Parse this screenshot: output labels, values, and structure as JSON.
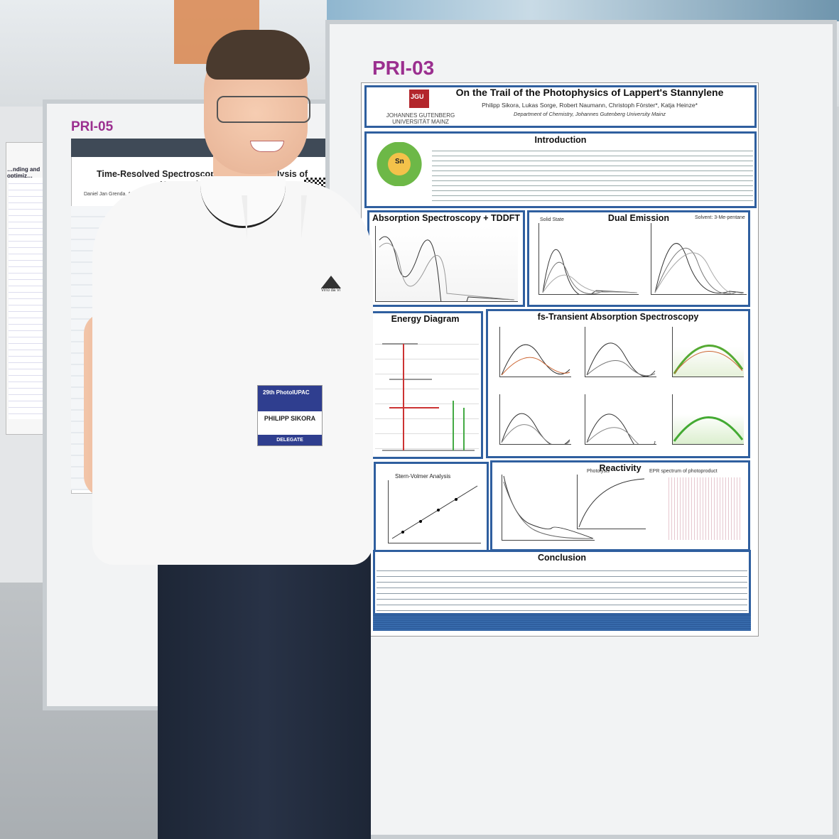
{
  "left_poster": {
    "tag": "PRI-05",
    "title": "Time-Resolved Spectroscopic Studi… …rolysis of Homopolar Seleni…",
    "authors": "Daniel Jan Grenda, Anna … Roger Jan Kutta, …"
  },
  "far_left_poster": {
    "title": "…nding and optimiz…"
  },
  "main_poster": {
    "tag": "PRI-03",
    "logo_text": "JGU",
    "university": "JOHANNES GUTENBERG UNIVERSITÄT MAINZ",
    "title": "On the Trail of the Photophysics of Lappert's Stannylene",
    "authors": "Philipp Sikora, Lukas Sorge, Robert Naumann, Christoph Förster*, Katja Heinze*",
    "affiliation": "Department of Chemistry, Johannes Gutenberg University Mainz",
    "sections": {
      "introduction": "Introduction",
      "intro_symbol": "Sn",
      "absorption": "Absorption Spectroscopy + TDDFT",
      "dual_emission": "Dual Emission",
      "dual_solid": "Solid State",
      "dual_solvent": "Solvent: 3-Me-pentane",
      "energy_diagram": "Energy Diagram",
      "fs_ta": "fs-Transient Absorption Spectroscopy",
      "stern_volmer": "Stern-Volmer Analysis",
      "reactivity": "Reactivity",
      "photolysis": "Photolysis",
      "epr": "EPR spectrum of photoproduct",
      "conclusion": "Conclusion"
    }
  },
  "badge": {
    "brand": "29th PhotoIUPAC",
    "name": "PHILIPP SIKORA",
    "role": "DELEGATE"
  },
  "shirt_logo_text": "Vino da Vi"
}
